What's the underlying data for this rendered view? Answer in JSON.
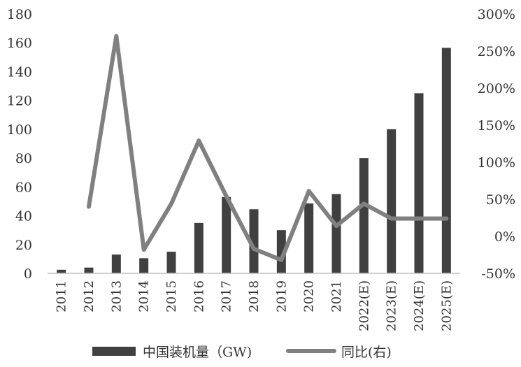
{
  "colors": {
    "bar": "#404040",
    "line": "#808080",
    "axis": "#bfbfbf",
    "text": "#333333"
  },
  "chart_data": {
    "type": "bar+line",
    "categories": [
      "2011",
      "2012",
      "2013",
      "2014",
      "2015",
      "2016",
      "2017",
      "2018",
      "2019",
      "2020",
      "2021",
      "2022(E)",
      "2023(E)",
      "2024(E)",
      "2025(E)"
    ],
    "series": [
      {
        "name": "中国装机量（GW)",
        "type": "bar",
        "axis": "left",
        "values": [
          2.5,
          4,
          13,
          10.5,
          15,
          35,
          53,
          44.5,
          30,
          48.5,
          55,
          80,
          100,
          125,
          156.5
        ]
      },
      {
        "name": "同比(右)",
        "type": "line",
        "axis": "right",
        "values": [
          null,
          40,
          270,
          -18,
          44,
          129,
          54,
          -17,
          -32,
          61,
          14,
          44,
          24,
          24,
          24
        ]
      }
    ],
    "left_axis": {
      "min": 0,
      "max": 180,
      "step": 20,
      "ticks": [
        "0",
        "20",
        "40",
        "60",
        "80",
        "100",
        "120",
        "140",
        "160",
        "180"
      ]
    },
    "right_axis": {
      "min": -50,
      "max": 300,
      "step": 50,
      "ticks": [
        "-50%",
        "0%",
        "50%",
        "100%",
        "150%",
        "200%",
        "250%",
        "300%"
      ]
    },
    "grid": false,
    "legend_position": "bottom"
  }
}
